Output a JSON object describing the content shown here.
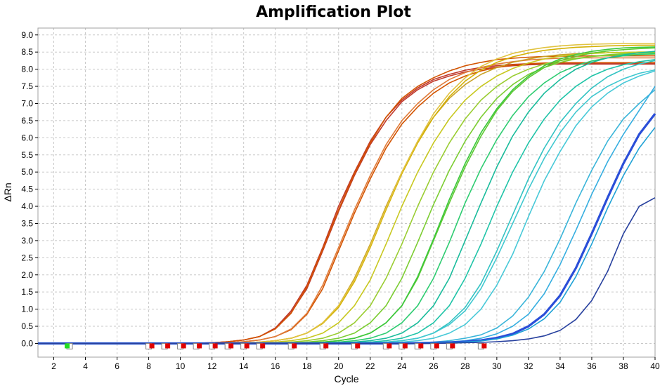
{
  "chart_data": {
    "type": "line",
    "title": "Amplification Plot",
    "xlabel": "Cycle",
    "ylabel": "ΔRn",
    "xlim": [
      1,
      40
    ],
    "ylim": [
      -0.4,
      9.2
    ],
    "x_ticks": [
      2,
      4,
      6,
      8,
      10,
      12,
      14,
      16,
      18,
      20,
      22,
      24,
      26,
      28,
      30,
      32,
      34,
      36,
      38,
      40
    ],
    "y_ticks": [
      "0.0",
      "0.5",
      "1.0",
      "1.5",
      "2.0",
      "2.5",
      "3.0",
      "3.5",
      "4.0",
      "4.5",
      "5.0",
      "5.5",
      "6.0",
      "6.5",
      "7.0",
      "7.5",
      "8.0",
      "8.5",
      "9.0"
    ],
    "grid": true,
    "series": [
      {
        "color": "#c0392b",
        "values": [
          0.0,
          0.0,
          0.0,
          0.0,
          0.0,
          0.0,
          0.0,
          0.0,
          0.0,
          0.0,
          0.01,
          0.02,
          0.05,
          0.1,
          0.2,
          0.45,
          0.95,
          1.7,
          2.8,
          4.0,
          5.0,
          5.9,
          6.6,
          7.1,
          7.45,
          7.7,
          7.85,
          7.97,
          8.05,
          8.1,
          8.14,
          8.16,
          8.17,
          8.18,
          8.18,
          8.18,
          8.18,
          8.18,
          8.18,
          8.18
        ]
      },
      {
        "color": "#c0392b",
        "values": [
          0.0,
          0.0,
          0.0,
          0.0,
          0.0,
          0.0,
          0.0,
          0.0,
          0.0,
          0.0,
          0.01,
          0.02,
          0.05,
          0.1,
          0.2,
          0.43,
          0.9,
          1.6,
          2.7,
          3.85,
          4.9,
          5.8,
          6.5,
          7.05,
          7.4,
          7.65,
          7.8,
          7.92,
          8.0,
          8.06,
          8.1,
          8.13,
          8.14,
          8.15,
          8.15,
          8.15,
          8.15,
          8.15,
          8.15,
          8.15
        ]
      },
      {
        "color": "#d35400",
        "values": [
          0.0,
          0.0,
          0.0,
          0.0,
          0.0,
          0.0,
          0.0,
          0.0,
          0.0,
          0.0,
          0.01,
          0.02,
          0.05,
          0.1,
          0.2,
          0.42,
          0.88,
          1.65,
          2.75,
          3.9,
          4.95,
          5.85,
          6.6,
          7.15,
          7.5,
          7.75,
          7.95,
          8.1,
          8.2,
          8.28,
          8.32,
          8.35,
          8.37,
          8.38,
          8.38,
          8.39,
          8.39,
          8.39,
          8.39,
          8.39
        ]
      },
      {
        "color": "#d35400",
        "values": [
          0.0,
          0.0,
          0.0,
          0.0,
          0.0,
          0.0,
          0.0,
          0.0,
          0.0,
          0.0,
          0.0,
          0.01,
          0.02,
          0.05,
          0.1,
          0.2,
          0.4,
          0.85,
          1.6,
          2.7,
          3.8,
          4.8,
          5.7,
          6.4,
          6.9,
          7.3,
          7.6,
          7.8,
          7.95,
          8.05,
          8.12,
          8.16,
          8.18,
          8.19,
          8.19,
          8.19,
          8.19,
          8.19,
          8.19,
          8.19
        ]
      },
      {
        "color": "#e07b39",
        "values": [
          0.0,
          0.0,
          0.0,
          0.0,
          0.0,
          0.0,
          0.0,
          0.0,
          0.0,
          0.0,
          0.0,
          0.01,
          0.02,
          0.05,
          0.1,
          0.2,
          0.42,
          0.88,
          1.7,
          2.8,
          3.9,
          4.9,
          5.8,
          6.5,
          7.0,
          7.4,
          7.7,
          7.9,
          8.05,
          8.15,
          8.22,
          8.27,
          8.3,
          8.32,
          8.33,
          8.33,
          8.33,
          8.33,
          8.33,
          8.33
        ]
      },
      {
        "color": "#c9a227",
        "values": [
          0.0,
          0.0,
          0.0,
          0.0,
          0.0,
          0.0,
          0.0,
          0.0,
          0.0,
          0.0,
          0.0,
          0.0,
          0.01,
          0.02,
          0.04,
          0.08,
          0.15,
          0.3,
          0.6,
          1.1,
          1.9,
          2.9,
          4.0,
          5.0,
          5.9,
          6.6,
          7.15,
          7.55,
          7.85,
          8.05,
          8.2,
          8.3,
          8.37,
          8.42,
          8.45,
          8.47,
          8.48,
          8.49,
          8.5,
          8.5
        ]
      },
      {
        "color": "#d4b106",
        "values": [
          0.0,
          0.0,
          0.0,
          0.0,
          0.0,
          0.0,
          0.0,
          0.0,
          0.0,
          0.0,
          0.0,
          0.0,
          0.01,
          0.02,
          0.04,
          0.08,
          0.15,
          0.3,
          0.58,
          1.05,
          1.8,
          2.8,
          3.9,
          4.95,
          5.85,
          6.6,
          7.2,
          7.65,
          7.98,
          8.2,
          8.36,
          8.47,
          8.55,
          8.6,
          8.64,
          8.66,
          8.68,
          8.69,
          8.7,
          8.7
        ]
      },
      {
        "color": "#e1c340",
        "values": [
          0.0,
          0.0,
          0.0,
          0.0,
          0.0,
          0.0,
          0.0,
          0.0,
          0.0,
          0.0,
          0.0,
          0.0,
          0.01,
          0.02,
          0.04,
          0.08,
          0.15,
          0.3,
          0.6,
          1.1,
          1.85,
          2.85,
          3.95,
          5.0,
          5.9,
          6.7,
          7.3,
          7.75,
          8.08,
          8.3,
          8.46,
          8.56,
          8.63,
          8.68,
          8.71,
          8.73,
          8.74,
          8.75,
          8.75,
          8.75
        ]
      },
      {
        "color": "#c8c820",
        "values": [
          0.0,
          0.0,
          0.0,
          0.0,
          0.0,
          0.0,
          0.0,
          0.0,
          0.0,
          0.0,
          0.0,
          0.0,
          0.0,
          0.01,
          0.02,
          0.04,
          0.08,
          0.15,
          0.3,
          0.6,
          1.1,
          1.85,
          2.9,
          4.0,
          5.0,
          5.85,
          6.55,
          7.1,
          7.5,
          7.8,
          8.02,
          8.18,
          8.3,
          8.38,
          8.43,
          8.46,
          8.48,
          8.49,
          8.5,
          8.5
        ]
      },
      {
        "color": "#9acd32",
        "values": [
          0.0,
          0.0,
          0.0,
          0.0,
          0.0,
          0.0,
          0.0,
          0.0,
          0.0,
          0.0,
          0.0,
          0.0,
          0.0,
          0.0,
          0.01,
          0.02,
          0.04,
          0.08,
          0.15,
          0.3,
          0.6,
          1.1,
          1.9,
          2.9,
          4.0,
          5.0,
          5.85,
          6.55,
          7.1,
          7.5,
          7.8,
          8.0,
          8.15,
          8.25,
          8.32,
          8.37,
          8.4,
          8.42,
          8.43,
          8.44
        ]
      },
      {
        "color": "#7ccd32",
        "values": [
          0.0,
          0.0,
          0.0,
          0.0,
          0.0,
          0.0,
          0.0,
          0.0,
          0.0,
          0.0,
          0.0,
          0.0,
          0.0,
          0.0,
          0.0,
          0.01,
          0.02,
          0.04,
          0.08,
          0.15,
          0.3,
          0.6,
          1.1,
          1.9,
          2.95,
          4.05,
          5.05,
          5.9,
          6.6,
          7.15,
          7.55,
          7.85,
          8.05,
          8.2,
          8.3,
          8.37,
          8.42,
          8.45,
          8.47,
          8.48
        ]
      },
      {
        "color": "#5ec832",
        "values": [
          0.0,
          0.0,
          0.0,
          0.0,
          0.0,
          0.0,
          0.0,
          0.0,
          0.0,
          0.0,
          0.0,
          0.0,
          0.0,
          0.0,
          0.0,
          0.0,
          0.01,
          0.02,
          0.04,
          0.08,
          0.15,
          0.3,
          0.6,
          1.1,
          1.9,
          3.0,
          4.1,
          5.15,
          6.05,
          6.8,
          7.35,
          7.75,
          8.05,
          8.25,
          8.38,
          8.47,
          8.53,
          8.57,
          8.6,
          8.62
        ]
      },
      {
        "color": "#3cc83c",
        "values": [
          0.0,
          0.0,
          0.0,
          0.0,
          0.0,
          0.0,
          0.0,
          0.0,
          0.0,
          0.0,
          0.0,
          0.0,
          0.0,
          0.0,
          0.0,
          0.0,
          0.01,
          0.02,
          0.04,
          0.08,
          0.15,
          0.3,
          0.6,
          1.1,
          1.95,
          3.05,
          4.2,
          5.25,
          6.15,
          6.85,
          7.4,
          7.8,
          8.1,
          8.3,
          8.43,
          8.52,
          8.58,
          8.62,
          8.64,
          8.65
        ]
      },
      {
        "color": "#2ecc71",
        "values": [
          0.0,
          0.0,
          0.0,
          0.0,
          0.0,
          0.0,
          0.0,
          0.0,
          0.0,
          0.0,
          0.0,
          0.0,
          0.0,
          0.0,
          0.0,
          0.0,
          0.0,
          0.01,
          0.02,
          0.04,
          0.08,
          0.15,
          0.3,
          0.6,
          1.1,
          1.9,
          2.95,
          4.1,
          5.1,
          5.95,
          6.65,
          7.2,
          7.6,
          7.9,
          8.1,
          8.24,
          8.33,
          8.39,
          8.43,
          8.45
        ]
      },
      {
        "color": "#1abc9c",
        "values": [
          0.0,
          0.0,
          0.0,
          0.0,
          0.0,
          0.0,
          0.0,
          0.0,
          0.0,
          0.0,
          0.0,
          0.0,
          0.0,
          0.0,
          0.0,
          0.0,
          0.0,
          0.0,
          0.01,
          0.02,
          0.04,
          0.08,
          0.15,
          0.3,
          0.6,
          1.1,
          1.9,
          3.0,
          4.1,
          5.15,
          6.05,
          6.75,
          7.3,
          7.7,
          8.0,
          8.2,
          8.33,
          8.42,
          8.48,
          8.52
        ]
      },
      {
        "color": "#20c4a8",
        "values": [
          0.0,
          0.0,
          0.0,
          0.0,
          0.0,
          0.0,
          0.0,
          0.0,
          0.0,
          0.0,
          0.0,
          0.0,
          0.0,
          0.0,
          0.0,
          0.0,
          0.0,
          0.0,
          0.0,
          0.01,
          0.02,
          0.04,
          0.08,
          0.15,
          0.3,
          0.6,
          1.1,
          1.9,
          2.9,
          4.0,
          5.0,
          5.85,
          6.55,
          7.1,
          7.5,
          7.8,
          8.0,
          8.13,
          8.22,
          8.28
        ]
      },
      {
        "color": "#33c3c3",
        "values": [
          0.0,
          0.0,
          0.0,
          0.0,
          0.0,
          0.0,
          0.0,
          0.0,
          0.0,
          0.0,
          0.0,
          0.0,
          0.0,
          0.0,
          0.0,
          0.0,
          0.0,
          0.0,
          0.0,
          0.0,
          0.01,
          0.02,
          0.04,
          0.08,
          0.15,
          0.3,
          0.6,
          1.05,
          1.75,
          2.7,
          3.75,
          4.8,
          5.7,
          6.45,
          7.0,
          7.45,
          7.78,
          8.0,
          8.15,
          8.25
        ]
      },
      {
        "color": "#40c8d0",
        "values": [
          0.0,
          0.0,
          0.0,
          0.0,
          0.0,
          0.0,
          0.0,
          0.0,
          0.0,
          0.0,
          0.0,
          0.0,
          0.0,
          0.0,
          0.0,
          0.0,
          0.0,
          0.0,
          0.0,
          0.0,
          0.01,
          0.02,
          0.04,
          0.08,
          0.15,
          0.3,
          0.55,
          0.95,
          1.6,
          2.5,
          3.5,
          4.5,
          5.4,
          6.15,
          6.75,
          7.2,
          7.5,
          7.72,
          7.88,
          7.98
        ]
      },
      {
        "color": "#48c9d8",
        "values": [
          0.0,
          0.0,
          0.0,
          0.0,
          0.0,
          0.0,
          0.0,
          0.0,
          0.0,
          0.0,
          0.0,
          0.0,
          0.0,
          0.0,
          0.0,
          0.0,
          0.0,
          0.0,
          0.0,
          0.0,
          0.0,
          0.01,
          0.02,
          0.04,
          0.08,
          0.15,
          0.3,
          0.55,
          1.0,
          1.7,
          2.6,
          3.7,
          4.75,
          5.6,
          6.35,
          6.9,
          7.3,
          7.6,
          7.8,
          7.95
        ]
      },
      {
        "color": "#3ab5d9",
        "values": [
          0.0,
          0.0,
          0.0,
          0.0,
          0.0,
          0.0,
          0.0,
          0.0,
          0.0,
          0.0,
          0.0,
          0.0,
          0.0,
          0.0,
          0.0,
          0.0,
          0.0,
          0.0,
          0.0,
          0.0,
          0.0,
          0.0,
          0.0,
          0.01,
          0.02,
          0.04,
          0.08,
          0.15,
          0.25,
          0.45,
          0.8,
          1.35,
          2.1,
          3.05,
          4.1,
          5.05,
          5.9,
          6.55,
          7.0,
          7.4
        ]
      },
      {
        "color": "#35aee0",
        "values": [
          0.0,
          0.0,
          0.0,
          0.0,
          0.0,
          0.0,
          0.0,
          0.0,
          0.0,
          0.0,
          0.0,
          0.0,
          0.0,
          0.0,
          0.0,
          0.0,
          0.0,
          0.0,
          0.0,
          0.0,
          0.0,
          0.0,
          0.0,
          0.0,
          0.01,
          0.02,
          0.04,
          0.08,
          0.15,
          0.28,
          0.5,
          0.85,
          1.45,
          2.3,
          3.3,
          4.35,
          5.3,
          6.1,
          6.8,
          7.5
        ]
      },
      {
        "color": "#2a4ed8",
        "width": 3.2,
        "values": [
          0.0,
          0.0,
          0.0,
          0.0,
          0.0,
          0.0,
          0.0,
          0.0,
          0.0,
          0.0,
          0.0,
          0.0,
          0.0,
          0.0,
          0.0,
          0.0,
          0.0,
          0.0,
          0.0,
          0.0,
          0.0,
          0.0,
          0.0,
          0.0,
          0.01,
          0.02,
          0.03,
          0.05,
          0.09,
          0.16,
          0.28,
          0.5,
          0.85,
          1.4,
          2.2,
          3.2,
          4.25,
          5.25,
          6.1,
          6.7
        ]
      },
      {
        "color": "#1fa2d6",
        "values": [
          0.0,
          0.0,
          0.0,
          0.0,
          0.0,
          0.0,
          0.0,
          0.0,
          0.0,
          0.0,
          0.0,
          0.0,
          0.0,
          0.0,
          0.0,
          0.0,
          0.0,
          0.0,
          0.0,
          0.0,
          0.0,
          0.0,
          0.0,
          0.0,
          0.0,
          0.01,
          0.02,
          0.04,
          0.07,
          0.13,
          0.24,
          0.42,
          0.72,
          1.2,
          1.95,
          2.9,
          3.95,
          4.9,
          5.7,
          6.3
        ]
      },
      {
        "color": "#27409e",
        "values": [
          0.0,
          0.0,
          0.0,
          0.0,
          0.0,
          0.0,
          0.0,
          0.0,
          0.0,
          0.0,
          0.0,
          0.0,
          0.0,
          0.0,
          0.0,
          0.0,
          0.0,
          0.0,
          0.0,
          0.0,
          0.0,
          0.0,
          0.0,
          0.0,
          0.0,
          0.0,
          0.01,
          0.02,
          0.03,
          0.05,
          0.08,
          0.13,
          0.22,
          0.38,
          0.7,
          1.25,
          2.1,
          3.2,
          4.0,
          4.25
        ]
      }
    ],
    "baseline_markers": {
      "green": [
        3
      ],
      "red": [
        8,
        9,
        10,
        11,
        12,
        13,
        14,
        15,
        17,
        19,
        21,
        23,
        24,
        25,
        26,
        27,
        29
      ],
      "open": [
        3,
        8,
        9,
        10,
        11,
        12,
        13,
        14,
        15,
        17,
        19,
        21,
        23,
        24,
        25,
        26,
        27,
        29
      ]
    }
  }
}
